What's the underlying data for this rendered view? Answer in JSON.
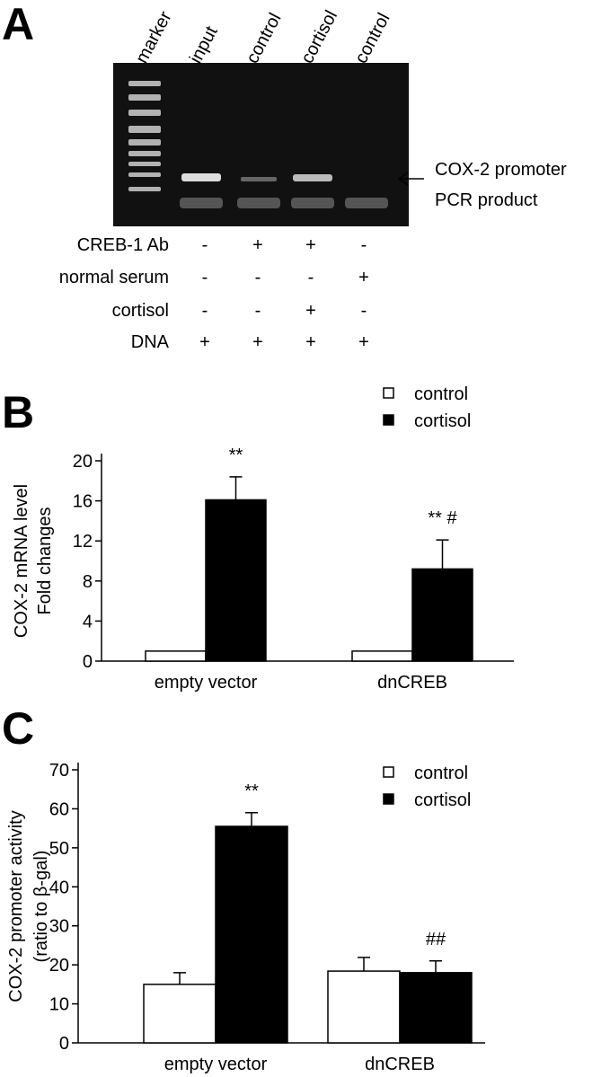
{
  "panel_a": {
    "label": "A",
    "lanes": [
      "marker",
      "input",
      "control",
      "cortisol",
      "control"
    ],
    "annotation": [
      "COX-2 promoter",
      "PCR  product"
    ],
    "conditions": [
      {
        "name": "CREB-1 Ab",
        "signs": [
          "-",
          "+",
          "+",
          "-"
        ]
      },
      {
        "name": "normal serum",
        "signs": [
          "-",
          "-",
          "-",
          "+"
        ]
      },
      {
        "name": "cortisol",
        "signs": [
          "-",
          "-",
          "+",
          "-"
        ]
      },
      {
        "name": "DNA",
        "signs": [
          "+",
          "+",
          "+",
          "+"
        ]
      }
    ]
  },
  "chart_data": [
    {
      "type": "bar",
      "panel_label": "B",
      "ylabel": [
        "COX-2 mRNA level",
        "Fold changes"
      ],
      "categories": [
        "empty vector",
        "dnCREB"
      ],
      "series": [
        {
          "name": "control",
          "color": "#ffffff",
          "values": [
            1,
            1
          ]
        },
        {
          "name": "cortisol",
          "color": "#000000",
          "values": [
            16.1,
            9.2
          ],
          "errors": [
            2.3,
            2.9
          ],
          "annotations": [
            "**",
            "** #"
          ]
        }
      ],
      "ylim": [
        0,
        20
      ],
      "yticks": [
        0,
        4,
        8,
        12,
        16,
        20
      ],
      "legend": "top-right"
    },
    {
      "type": "bar",
      "panel_label": "C",
      "ylabel": [
        "COX-2 promoter activity",
        "(ratio to β-gal)"
      ],
      "categories": [
        "empty vector",
        "dnCREB"
      ],
      "series": [
        {
          "name": "control",
          "color": "#ffffff",
          "values": [
            15,
            18.4
          ],
          "errors": [
            3,
            3.5
          ]
        },
        {
          "name": "cortisol",
          "color": "#000000",
          "values": [
            55.5,
            18
          ],
          "errors": [
            3.5,
            3
          ],
          "annotations": [
            "**",
            "##"
          ]
        }
      ],
      "ylim": [
        0,
        70
      ],
      "yticks": [
        0,
        10,
        20,
        30,
        40,
        50,
        60,
        70
      ],
      "legend": "top-right"
    }
  ]
}
